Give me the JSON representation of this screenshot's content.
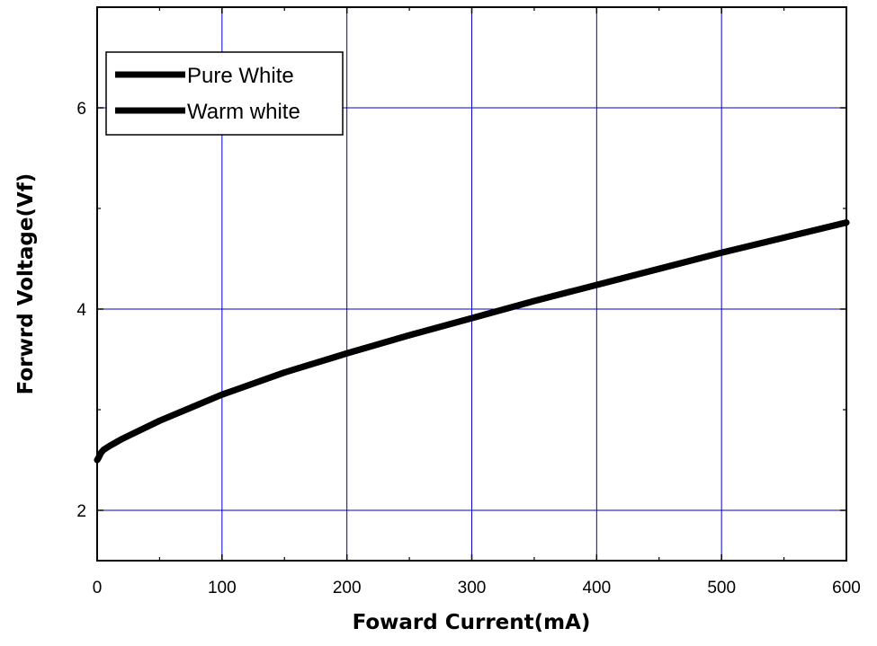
{
  "chart_data": {
    "type": "line",
    "xlabel": "Foward Current(mA)",
    "ylabel": "Forwrd Voltage(Vf)",
    "xlim": [
      0,
      600
    ],
    "ylim": [
      1.5,
      7.0
    ],
    "xticks": [
      {
        "value": 0,
        "label": "0"
      },
      {
        "value": 100,
        "label": "100"
      },
      {
        "value": 200,
        "label": "200"
      },
      {
        "value": 300,
        "label": "300"
      },
      {
        "value": 400,
        "label": "400"
      },
      {
        "value": 500,
        "label": "500"
      },
      {
        "value": 600,
        "label": "600"
      }
    ],
    "yticks": [
      {
        "value": 2,
        "label": "2"
      },
      {
        "value": 4,
        "label": "4"
      },
      {
        "value": 6,
        "label": "6"
      }
    ],
    "grid": true,
    "grid_color": "#0000cc",
    "line_color": "#000000",
    "legend_position": "top-left",
    "series": [
      {
        "name": "Pure White",
        "x": [
          0,
          1,
          3,
          5,
          10,
          20,
          30,
          50,
          75,
          100,
          150,
          200,
          250,
          300,
          350,
          400,
          450,
          500,
          550,
          600
        ],
        "y": [
          2.5,
          2.52,
          2.57,
          2.6,
          2.64,
          2.71,
          2.77,
          2.89,
          3.02,
          3.15,
          3.37,
          3.56,
          3.74,
          3.91,
          4.08,
          4.24,
          4.4,
          4.56,
          4.71,
          4.86
        ]
      },
      {
        "name": "Warm white",
        "x": [
          0,
          1,
          3,
          5,
          10,
          20,
          30,
          50,
          75,
          100,
          150,
          200,
          250,
          300,
          350,
          400,
          450,
          500,
          550,
          600
        ],
        "y": [
          2.5,
          2.52,
          2.57,
          2.6,
          2.64,
          2.71,
          2.77,
          2.89,
          3.02,
          3.15,
          3.37,
          3.56,
          3.74,
          3.91,
          4.08,
          4.24,
          4.4,
          4.56,
          4.71,
          4.86
        ]
      }
    ]
  }
}
